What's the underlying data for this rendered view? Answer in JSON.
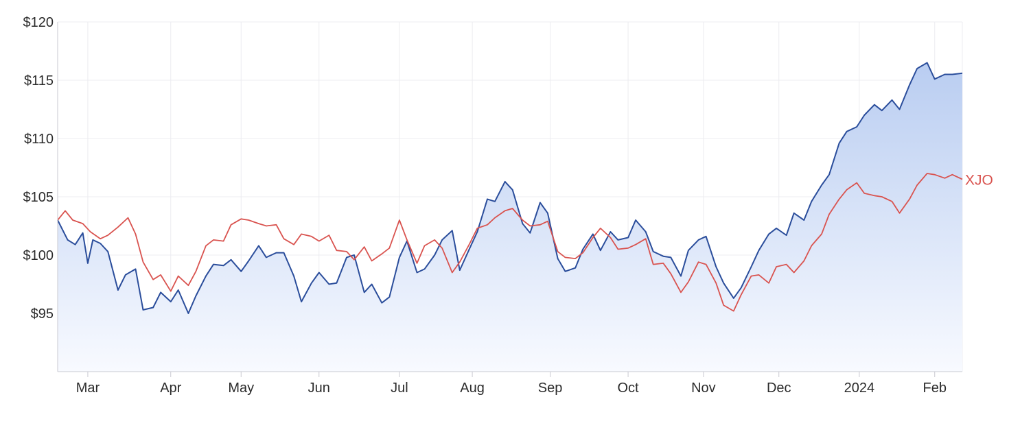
{
  "chart_data": {
    "type": "line",
    "title": "",
    "xlabel": "",
    "ylabel": "",
    "ylim": [
      90,
      120
    ],
    "yticks": [
      95,
      100,
      105,
      110,
      115,
      120
    ],
    "ytick_labels": [
      "$95",
      "$100",
      "$105",
      "$110",
      "$115",
      "$120"
    ],
    "xlim": [
      "2023-02-17",
      "2024-02-12"
    ],
    "xticks": [
      {
        "date": "2023-03-01",
        "label": "Mar"
      },
      {
        "date": "2023-04-03",
        "label": "Apr"
      },
      {
        "date": "2023-05-01",
        "label": "May"
      },
      {
        "date": "2023-06-01",
        "label": "Jun"
      },
      {
        "date": "2023-07-03",
        "label": "Jul"
      },
      {
        "date": "2023-08-01",
        "label": "Aug"
      },
      {
        "date": "2023-09-01",
        "label": "Sep"
      },
      {
        "date": "2023-10-02",
        "label": "Oct"
      },
      {
        "date": "2023-11-01",
        "label": "Nov"
      },
      {
        "date": "2023-12-01",
        "label": "Dec"
      },
      {
        "date": "2024-01-02",
        "label": "2024"
      },
      {
        "date": "2024-02-01",
        "label": "Feb"
      }
    ],
    "grid": true,
    "colors": {
      "price_line": "#2a4d9b",
      "area_top": "#b9cdf1",
      "area_bottom": "#f8faff",
      "xjo_line": "#d9534f",
      "grid": "#ececf0",
      "axis": "#c9c9d1"
    },
    "series": [
      {
        "name": "",
        "role": "price",
        "area_fill": true,
        "points": [
          [
            "2023-02-17",
            103.0
          ],
          [
            "2023-02-21",
            101.3
          ],
          [
            "2023-02-24",
            100.9
          ],
          [
            "2023-02-27",
            101.9
          ],
          [
            "2023-03-01",
            99.3
          ],
          [
            "2023-03-03",
            101.3
          ],
          [
            "2023-03-06",
            101.0
          ],
          [
            "2023-03-09",
            100.3
          ],
          [
            "2023-03-13",
            97.0
          ],
          [
            "2023-03-16",
            98.3
          ],
          [
            "2023-03-20",
            98.8
          ],
          [
            "2023-03-23",
            95.3
          ],
          [
            "2023-03-27",
            95.5
          ],
          [
            "2023-03-30",
            96.8
          ],
          [
            "2023-04-03",
            96.0
          ],
          [
            "2023-04-06",
            97.0
          ],
          [
            "2023-04-10",
            95.0
          ],
          [
            "2023-04-13",
            96.5
          ],
          [
            "2023-04-17",
            98.2
          ],
          [
            "2023-04-20",
            99.2
          ],
          [
            "2023-04-24",
            99.1
          ],
          [
            "2023-04-27",
            99.6
          ],
          [
            "2023-05-01",
            98.6
          ],
          [
            "2023-05-04",
            99.5
          ],
          [
            "2023-05-08",
            100.8
          ],
          [
            "2023-05-11",
            99.8
          ],
          [
            "2023-05-15",
            100.2
          ],
          [
            "2023-05-18",
            100.2
          ],
          [
            "2023-05-22",
            98.2
          ],
          [
            "2023-05-25",
            96.0
          ],
          [
            "2023-05-29",
            97.6
          ],
          [
            "2023-06-01",
            98.5
          ],
          [
            "2023-06-05",
            97.5
          ],
          [
            "2023-06-08",
            97.6
          ],
          [
            "2023-06-12",
            99.8
          ],
          [
            "2023-06-15",
            100.0
          ],
          [
            "2023-06-19",
            96.8
          ],
          [
            "2023-06-22",
            97.5
          ],
          [
            "2023-06-26",
            95.9
          ],
          [
            "2023-06-29",
            96.4
          ],
          [
            "2023-07-03",
            99.8
          ],
          [
            "2023-07-06",
            101.2
          ],
          [
            "2023-07-10",
            98.5
          ],
          [
            "2023-07-13",
            98.8
          ],
          [
            "2023-07-17",
            100.0
          ],
          [
            "2023-07-20",
            101.3
          ],
          [
            "2023-07-24",
            102.1
          ],
          [
            "2023-07-27",
            98.7
          ],
          [
            "2023-07-31",
            100.6
          ],
          [
            "2023-08-03",
            102.0
          ],
          [
            "2023-08-07",
            104.8
          ],
          [
            "2023-08-10",
            104.6
          ],
          [
            "2023-08-14",
            106.3
          ],
          [
            "2023-08-17",
            105.6
          ],
          [
            "2023-08-21",
            102.7
          ],
          [
            "2023-08-24",
            101.9
          ],
          [
            "2023-08-28",
            104.5
          ],
          [
            "2023-08-31",
            103.6
          ],
          [
            "2023-09-04",
            99.7
          ],
          [
            "2023-09-07",
            98.6
          ],
          [
            "2023-09-11",
            98.9
          ],
          [
            "2023-09-14",
            100.5
          ],
          [
            "2023-09-18",
            101.8
          ],
          [
            "2023-09-21",
            100.4
          ],
          [
            "2023-09-25",
            102.0
          ],
          [
            "2023-09-28",
            101.3
          ],
          [
            "2023-10-02",
            101.5
          ],
          [
            "2023-10-05",
            103.0
          ],
          [
            "2023-10-09",
            102.0
          ],
          [
            "2023-10-12",
            100.3
          ],
          [
            "2023-10-16",
            99.9
          ],
          [
            "2023-10-19",
            99.8
          ],
          [
            "2023-10-23",
            98.2
          ],
          [
            "2023-10-26",
            100.4
          ],
          [
            "2023-10-30",
            101.3
          ],
          [
            "2023-11-02",
            101.6
          ],
          [
            "2023-11-06",
            99.0
          ],
          [
            "2023-11-09",
            97.6
          ],
          [
            "2023-11-13",
            96.3
          ],
          [
            "2023-11-16",
            97.2
          ],
          [
            "2023-11-20",
            99.0
          ],
          [
            "2023-11-23",
            100.4
          ],
          [
            "2023-11-27",
            101.8
          ],
          [
            "2023-11-30",
            102.3
          ],
          [
            "2023-12-04",
            101.7
          ],
          [
            "2023-12-07",
            103.6
          ],
          [
            "2023-12-11",
            103.0
          ],
          [
            "2023-12-14",
            104.6
          ],
          [
            "2023-12-18",
            106.0
          ],
          [
            "2023-12-21",
            106.9
          ],
          [
            "2023-12-25",
            109.6
          ],
          [
            "2023-12-28",
            110.6
          ],
          [
            "2024-01-01",
            111.0
          ],
          [
            "2024-01-04",
            112.0
          ],
          [
            "2024-01-08",
            112.9
          ],
          [
            "2024-01-11",
            112.4
          ],
          [
            "2024-01-15",
            113.3
          ],
          [
            "2024-01-18",
            112.5
          ],
          [
            "2024-01-22",
            114.6
          ],
          [
            "2024-01-25",
            116.0
          ],
          [
            "2024-01-29",
            116.5
          ],
          [
            "2024-02-01",
            115.1
          ],
          [
            "2024-02-05",
            115.5
          ],
          [
            "2024-02-08",
            115.5
          ],
          [
            "2024-02-12",
            115.6
          ]
        ]
      },
      {
        "name": "XJO",
        "role": "benchmark",
        "area_fill": false,
        "points": [
          [
            "2023-02-17",
            103.0
          ],
          [
            "2023-02-20",
            103.8
          ],
          [
            "2023-02-23",
            103.0
          ],
          [
            "2023-02-27",
            102.7
          ],
          [
            "2023-03-02",
            102.0
          ],
          [
            "2023-03-06",
            101.4
          ],
          [
            "2023-03-09",
            101.7
          ],
          [
            "2023-03-13",
            102.4
          ],
          [
            "2023-03-17",
            103.2
          ],
          [
            "2023-03-20",
            101.8
          ],
          [
            "2023-03-23",
            99.4
          ],
          [
            "2023-03-27",
            97.9
          ],
          [
            "2023-03-30",
            98.3
          ],
          [
            "2023-04-03",
            96.9
          ],
          [
            "2023-04-06",
            98.2
          ],
          [
            "2023-04-10",
            97.4
          ],
          [
            "2023-04-13",
            98.6
          ],
          [
            "2023-04-17",
            100.8
          ],
          [
            "2023-04-20",
            101.3
          ],
          [
            "2023-04-24",
            101.2
          ],
          [
            "2023-04-27",
            102.6
          ],
          [
            "2023-05-01",
            103.1
          ],
          [
            "2023-05-04",
            103.0
          ],
          [
            "2023-05-08",
            102.7
          ],
          [
            "2023-05-11",
            102.5
          ],
          [
            "2023-05-15",
            102.6
          ],
          [
            "2023-05-18",
            101.4
          ],
          [
            "2023-05-22",
            100.9
          ],
          [
            "2023-05-25",
            101.8
          ],
          [
            "2023-05-29",
            101.6
          ],
          [
            "2023-06-01",
            101.2
          ],
          [
            "2023-06-05",
            101.7
          ],
          [
            "2023-06-08",
            100.4
          ],
          [
            "2023-06-12",
            100.3
          ],
          [
            "2023-06-15",
            99.6
          ],
          [
            "2023-06-19",
            100.7
          ],
          [
            "2023-06-22",
            99.5
          ],
          [
            "2023-06-26",
            100.1
          ],
          [
            "2023-06-29",
            100.6
          ],
          [
            "2023-07-03",
            103.0
          ],
          [
            "2023-07-06",
            101.3
          ],
          [
            "2023-07-10",
            99.3
          ],
          [
            "2023-07-13",
            100.8
          ],
          [
            "2023-07-17",
            101.3
          ],
          [
            "2023-07-20",
            100.6
          ],
          [
            "2023-07-24",
            98.5
          ],
          [
            "2023-07-27",
            99.4
          ],
          [
            "2023-07-31",
            101.0
          ],
          [
            "2023-08-03",
            102.3
          ],
          [
            "2023-08-07",
            102.6
          ],
          [
            "2023-08-10",
            103.2
          ],
          [
            "2023-08-14",
            103.8
          ],
          [
            "2023-08-17",
            104.0
          ],
          [
            "2023-08-21",
            103.0
          ],
          [
            "2023-08-24",
            102.5
          ],
          [
            "2023-08-28",
            102.6
          ],
          [
            "2023-08-31",
            102.9
          ],
          [
            "2023-09-04",
            100.3
          ],
          [
            "2023-09-07",
            99.8
          ],
          [
            "2023-09-11",
            99.7
          ],
          [
            "2023-09-14",
            100.2
          ],
          [
            "2023-09-18",
            101.5
          ],
          [
            "2023-09-21",
            102.3
          ],
          [
            "2023-09-25",
            101.5
          ],
          [
            "2023-09-28",
            100.5
          ],
          [
            "2023-10-02",
            100.6
          ],
          [
            "2023-10-05",
            100.9
          ],
          [
            "2023-10-09",
            101.4
          ],
          [
            "2023-10-12",
            99.2
          ],
          [
            "2023-10-16",
            99.3
          ],
          [
            "2023-10-19",
            98.4
          ],
          [
            "2023-10-23",
            96.8
          ],
          [
            "2023-10-26",
            97.7
          ],
          [
            "2023-10-30",
            99.4
          ],
          [
            "2023-11-02",
            99.2
          ],
          [
            "2023-11-06",
            97.6
          ],
          [
            "2023-11-09",
            95.7
          ],
          [
            "2023-11-13",
            95.2
          ],
          [
            "2023-11-16",
            96.6
          ],
          [
            "2023-11-20",
            98.2
          ],
          [
            "2023-11-23",
            98.3
          ],
          [
            "2023-11-27",
            97.6
          ],
          [
            "2023-11-30",
            99.0
          ],
          [
            "2023-12-04",
            99.2
          ],
          [
            "2023-12-07",
            98.5
          ],
          [
            "2023-12-11",
            99.5
          ],
          [
            "2023-12-14",
            100.8
          ],
          [
            "2023-12-18",
            101.8
          ],
          [
            "2023-12-21",
            103.5
          ],
          [
            "2023-12-25",
            104.8
          ],
          [
            "2023-12-28",
            105.6
          ],
          [
            "2024-01-01",
            106.2
          ],
          [
            "2024-01-04",
            105.3
          ],
          [
            "2024-01-08",
            105.1
          ],
          [
            "2024-01-11",
            105.0
          ],
          [
            "2024-01-15",
            104.6
          ],
          [
            "2024-01-18",
            103.6
          ],
          [
            "2024-01-22",
            104.8
          ],
          [
            "2024-01-25",
            106.0
          ],
          [
            "2024-01-29",
            107.0
          ],
          [
            "2024-02-01",
            106.9
          ],
          [
            "2024-02-05",
            106.6
          ],
          [
            "2024-02-08",
            106.9
          ],
          [
            "2024-02-12",
            106.5
          ]
        ]
      }
    ]
  }
}
